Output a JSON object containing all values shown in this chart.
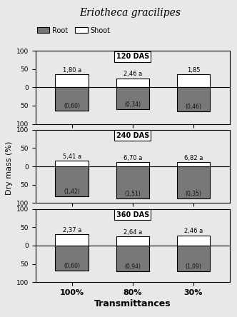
{
  "title": "Eriotheca gracilipes",
  "subplots": [
    {
      "label": "120 DAS",
      "transmittances": [
        "100%",
        "80%",
        "30%"
      ],
      "shoot": [
        35,
        25,
        35
      ],
      "root": [
        -63,
        -60,
        -65
      ],
      "ratios": [
        "1,80 a",
        "2,46 a",
        "1,85"
      ],
      "std_labels": [
        "(0,60)",
        "(0,34)",
        "(0,46)"
      ]
    },
    {
      "label": "240 DAS",
      "transmittances": [
        "100%",
        "80%",
        "30%"
      ],
      "shoot": [
        15,
        12,
        12
      ],
      "root": [
        -82,
        -88,
        -88
      ],
      "ratios": [
        "5,41 a",
        "6,70 a",
        "6,82 a"
      ],
      "std_labels": [
        "(1,42)",
        "(1,51)",
        "(0,35)"
      ]
    },
    {
      "label": "360 DAS",
      "transmittances": [
        "100%",
        "80%",
        "30%"
      ],
      "shoot": [
        30,
        26,
        28
      ],
      "root": [
        -68,
        -70,
        -70
      ],
      "ratios": [
        "2,37 a",
        "2,64 a",
        "2,46 a"
      ],
      "std_labels": [
        "(0,60)",
        "(0,94)",
        "(1,09)"
      ]
    }
  ],
  "shoot_color": "#ffffff",
  "root_color": "#787878",
  "bar_edge_color": "#000000",
  "ylabel": "Dry mass (%)",
  "xlabel": "Transmittances",
  "ylim": [
    -100,
    100
  ],
  "yticks": [
    -100,
    -50,
    0,
    50,
    100
  ],
  "yticklabels": [
    "100",
    "50",
    "0",
    "50",
    "100"
  ],
  "bar_width": 0.55,
  "background_color": "#e8e8e8",
  "fig_background": "#e8e8e8"
}
